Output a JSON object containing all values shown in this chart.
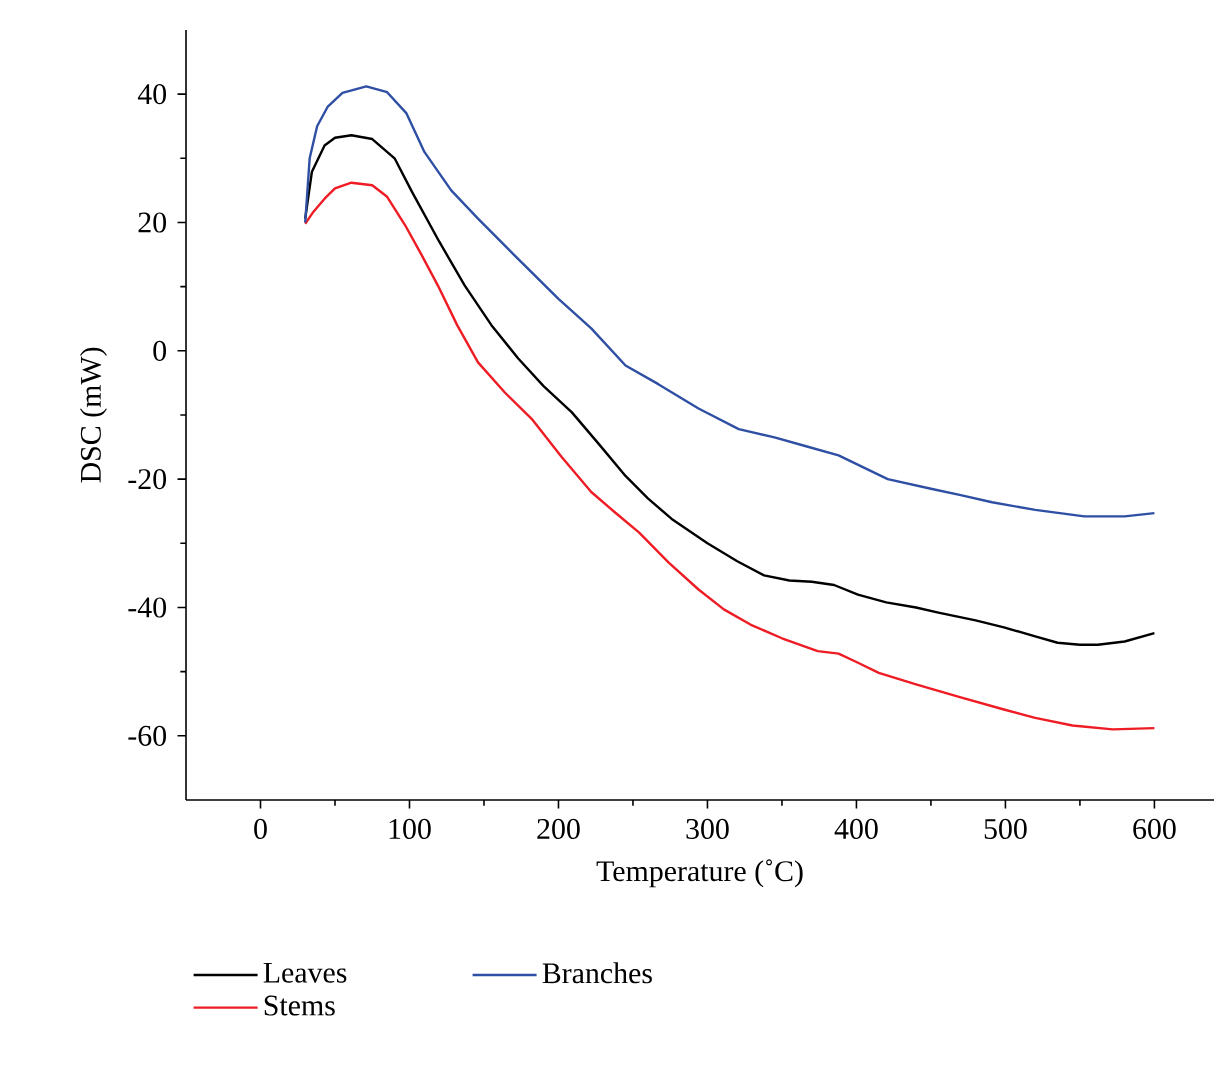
{
  "chart_data": {
    "type": "line",
    "xlabel": "Temperature (˚C)",
    "ylabel": "DSC (mW)",
    "xlim": [
      -50,
      640
    ],
    "ylim": [
      -70,
      50
    ],
    "xticks": [
      0,
      100,
      200,
      300,
      400,
      500,
      600
    ],
    "yticks": [
      -60,
      -40,
      -20,
      0,
      20,
      40
    ],
    "legend": "bottom",
    "grid": false,
    "marker": "none",
    "line_style": "solid",
    "series": [
      {
        "name": "Leaves",
        "color": "#000000",
        "x": [
          30,
          34.5,
          43,
          50,
          61,
          75,
          90,
          101.6,
          120,
          137,
          155,
          173,
          190,
          209,
          227,
          245,
          260,
          276,
          300,
          320,
          338,
          355,
          370,
          385,
          401,
          420,
          440,
          455,
          480,
          499,
          520,
          535,
          550,
          562,
          580,
          600
        ],
        "values": [
          20.6,
          27.9,
          32,
          33.2,
          33.6,
          33,
          30,
          24.8,
          17,
          10.2,
          4,
          -1.2,
          -5.5,
          -9.6,
          -14.5,
          -19.5,
          -23,
          -26.2,
          -30,
          -32.8,
          -35,
          -35.8,
          -36,
          -36.5,
          -38,
          -39.2,
          -40,
          -40.8,
          -42,
          -43.1,
          -44.5,
          -45.5,
          -45.8,
          -45.8,
          -45.3,
          -44
        ]
      },
      {
        "name": "Stems",
        "color": "#ee1c24",
        "x": [
          30,
          35,
          43,
          50,
          61,
          75,
          85,
          97,
          108,
          119,
          132,
          146,
          164,
          182,
          202,
          222,
          238,
          254,
          274,
          294,
          311,
          330,
          350,
          374,
          388,
          400,
          415,
          440,
          470,
          499,
          520,
          545,
          572,
          600
        ],
        "values": [
          19.8,
          21.5,
          23.7,
          25.3,
          26.2,
          25.8,
          24,
          19.6,
          15,
          10.2,
          4,
          -1.8,
          -6.5,
          -10.6,
          -16.5,
          -22,
          -25.2,
          -28.3,
          -33,
          -37.2,
          -40.3,
          -42.8,
          -44.8,
          -46.8,
          -47.2,
          -48.5,
          -50.2,
          -52,
          -54,
          -55.9,
          -57.2,
          -58.4,
          -59,
          -58.8
        ]
      },
      {
        "name": "Branches",
        "color": "#2e4fa3",
        "x": [
          30,
          33,
          38,
          45,
          55,
          71,
          85,
          98,
          110,
          128,
          146,
          170,
          200,
          222,
          245,
          267,
          294,
          321,
          345,
          365,
          388,
          405,
          421,
          450,
          470,
          491,
          520,
          553,
          580,
          600
        ],
        "values": [
          20,
          30,
          35,
          38,
          40.2,
          41.2,
          40.3,
          37,
          31,
          25,
          20.6,
          15,
          8.1,
          3.5,
          -2.3,
          -5.2,
          -9,
          -12.2,
          -13.5,
          -14.8,
          -16.3,
          -18.2,
          -20,
          -21.5,
          -22.5,
          -23.6,
          -24.8,
          -25.8,
          -25.8,
          -25.3
        ]
      }
    ]
  }
}
